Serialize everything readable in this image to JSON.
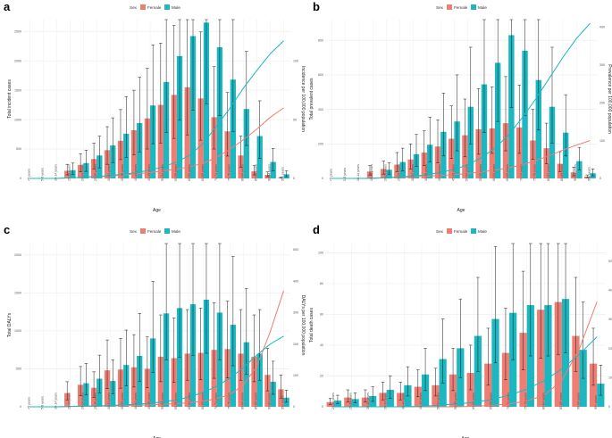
{
  "colors": {
    "female": "#EE7D73",
    "male": "#1BB8C1",
    "grid": "#EBEBEB",
    "errorbar": "#1a1a1a"
  },
  "legend": {
    "title": "Sex",
    "female": "Female",
    "male": "Male"
  },
  "chart_data": [
    {
      "panel": "a",
      "type": "bar",
      "title": "",
      "xlabel": "Age",
      "ylabel": "Total incident cases",
      "y2label": "Incidence per 100,000 population",
      "ylim": [
        0,
        2700
      ],
      "yticks": [
        0,
        500,
        1000,
        1500,
        2000,
        2500
      ],
      "y2lim": [
        0,
        135
      ],
      "y2ticks": [
        0,
        50,
        100
      ],
      "categories": [
        "<5 years",
        "5-9 years",
        "10-14 years",
        "15-19 years",
        "20-24 years",
        "25-29 years",
        "30-34 years",
        "35-39 years",
        "40-44 years",
        "45-49 years",
        "50-54 years",
        "55-59 years",
        "60-64 years",
        "65-69 years",
        "70-74 years",
        "75-79 years",
        "80-84 years",
        "85-89 years",
        "90-94 years",
        "95+ years"
      ],
      "series": [
        {
          "name": "Female",
          "values": [
            0,
            0,
            0,
            130,
            230,
            330,
            480,
            640,
            820,
            1020,
            1250,
            1420,
            1550,
            1360,
            1040,
            800,
            390,
            120,
            60,
            10
          ],
          "err_low": [
            0,
            0,
            0,
            60,
            110,
            160,
            240,
            320,
            400,
            500,
            600,
            680,
            740,
            650,
            500,
            380,
            190,
            60,
            30,
            5
          ],
          "err_high": [
            0,
            0,
            0,
            240,
            420,
            600,
            880,
            1170,
            1500,
            1870,
            2300,
            2600,
            2840,
            2490,
            1900,
            1460,
            720,
            220,
            110,
            20
          ],
          "rate": [
            0,
            0,
            0,
            0.5,
            1,
            1.5,
            2,
            3,
            4,
            5,
            6.5,
            8,
            10,
            13,
            18,
            25,
            33,
            42,
            52,
            60
          ]
        },
        {
          "name": "Male",
          "values": [
            0,
            0,
            0,
            140,
            260,
            390,
            560,
            760,
            940,
            1240,
            1640,
            2080,
            2420,
            2650,
            2230,
            1680,
            1180,
            720,
            280,
            70
          ],
          "err_low": [
            0,
            0,
            0,
            70,
            120,
            180,
            270,
            360,
            450,
            590,
            780,
            990,
            1160,
            1270,
            1070,
            800,
            560,
            340,
            130,
            30
          ],
          "err_high": [
            0,
            0,
            0,
            260,
            480,
            720,
            1030,
            1390,
            1720,
            2270,
            3000,
            3800,
            4430,
            4850,
            4080,
            3080,
            2160,
            1320,
            510,
            130
          ],
          "rate": [
            0,
            0,
            0,
            0.5,
            1,
            1.5,
            2.5,
            3.5,
            5,
            7,
            10,
            14,
            20,
            30,
            45,
            60,
            77,
            92,
            106,
            117
          ]
        }
      ]
    },
    {
      "panel": "b",
      "type": "bar",
      "title": "",
      "xlabel": "Age",
      "ylabel": "Total prevalent cases",
      "y2label": "Prevalence per 100,000 population",
      "ylim": [
        0,
        920
      ],
      "yticks": [
        0,
        200,
        400,
        600,
        800
      ],
      "y2lim": [
        0,
        420
      ],
      "y2ticks": [
        0,
        100,
        200,
        300,
        400
      ],
      "categories": [
        "<5 years",
        "5-9 years",
        "10-14 years",
        "15-19 years",
        "20-24 years",
        "25-29 years",
        "30-34 years",
        "35-39 years",
        "40-44 years",
        "45-49 years",
        "50-54 years",
        "55-59 years",
        "60-64 years",
        "65-69 years",
        "70-74 years",
        "75-79 years",
        "80-84 years",
        "85-89 years",
        "90-94 years",
        "95+ years"
      ],
      "series": [
        {
          "name": "Female",
          "values": [
            0,
            0,
            0,
            40,
            55,
            80,
            110,
            150,
            185,
            230,
            250,
            285,
            290,
            320,
            295,
            220,
            175,
            85,
            35,
            10
          ],
          "err_low": [
            0,
            0,
            0,
            20,
            25,
            40,
            55,
            75,
            90,
            115,
            125,
            140,
            145,
            160,
            145,
            110,
            85,
            40,
            15,
            5
          ],
          "err_high": [
            0,
            0,
            0,
            75,
            100,
            150,
            200,
            275,
            340,
            420,
            460,
            520,
            530,
            590,
            540,
            400,
            320,
            155,
            65,
            20
          ],
          "rate": [
            0,
            0,
            0,
            1,
            2,
            3,
            4,
            6,
            8,
            10,
            13,
            17,
            22,
            28,
            36,
            47,
            60,
            75,
            88,
            100
          ]
        },
        {
          "name": "Male",
          "values": [
            0,
            0,
            0,
            0,
            50,
            95,
            140,
            195,
            270,
            330,
            415,
            545,
            670,
            830,
            740,
            570,
            415,
            265,
            100,
            30
          ],
          "err_low": [
            0,
            0,
            0,
            0,
            25,
            45,
            70,
            95,
            130,
            160,
            200,
            265,
            330,
            410,
            365,
            280,
            205,
            130,
            50,
            15
          ],
          "err_high": [
            0,
            0,
            0,
            0,
            90,
            175,
            255,
            355,
            495,
            600,
            760,
            995,
            1225,
            1520,
            1350,
            1040,
            760,
            485,
            180,
            55
          ],
          "rate": [
            0,
            0,
            0,
            0,
            2,
            4,
            6,
            10,
            16,
            24,
            36,
            55,
            80,
            115,
            160,
            210,
            265,
            320,
            370,
            410
          ]
        }
      ]
    },
    {
      "panel": "c",
      "type": "bar",
      "title": "",
      "xlabel": "Age",
      "ylabel": "Total DALYs",
      "y2label": "DALYs per 100,000 population",
      "ylim": [
        0,
        2150
      ],
      "yticks": [
        0,
        500,
        1000,
        1500,
        2000
      ],
      "y2lim": [
        0,
        520
      ],
      "y2ticks": [
        0,
        100,
        200,
        300,
        400,
        500
      ],
      "categories": [
        "<5 years",
        "5-9 years",
        "10-14 years",
        "15-19 years",
        "20-24 years",
        "25-29 years",
        "30-34 years",
        "35-39 years",
        "40-44 years",
        "45-49 years",
        "50-54 years",
        "55-59 years",
        "60-64 years",
        "65-69 years",
        "70-74 years",
        "75-79 years",
        "80-84 years",
        "85-89 years",
        "90-94 years",
        "95+ years"
      ],
      "series": [
        {
          "name": "Female",
          "values": [
            0,
            0,
            0,
            180,
            290,
            250,
            480,
            490,
            520,
            500,
            660,
            640,
            700,
            710,
            750,
            760,
            700,
            660,
            420,
            230
          ],
          "err_low": [
            0,
            0,
            0,
            90,
            145,
            125,
            240,
            245,
            260,
            250,
            330,
            320,
            350,
            355,
            375,
            380,
            350,
            330,
            210,
            115
          ],
          "err_high": [
            0,
            0,
            0,
            330,
            530,
            460,
            880,
            900,
            950,
            920,
            1210,
            1170,
            1280,
            1300,
            1370,
            1390,
            1280,
            1210,
            770,
            420
          ],
          "rate": [
            0,
            0,
            0,
            1,
            1.5,
            2,
            3,
            4,
            5,
            6,
            8,
            10,
            13,
            18,
            26,
            40,
            70,
            130,
            240,
            370
          ]
        },
        {
          "name": "Male",
          "values": [
            0,
            0,
            0,
            0,
            310,
            370,
            340,
            550,
            670,
            900,
            1230,
            1300,
            1350,
            1410,
            1240,
            1080,
            850,
            700,
            330,
            120
          ],
          "err_low": [
            0,
            0,
            0,
            0,
            155,
            185,
            170,
            275,
            335,
            450,
            615,
            650,
            675,
            705,
            620,
            540,
            425,
            350,
            165,
            60
          ],
          "err_high": [
            0,
            0,
            0,
            0,
            570,
            680,
            620,
            1010,
            1230,
            1650,
            2250,
            2380,
            2470,
            2580,
            2270,
            1980,
            1560,
            1280,
            600,
            220
          ],
          "rate": [
            0,
            0,
            0,
            1,
            2,
            3,
            4,
            6,
            8,
            11,
            16,
            22,
            32,
            46,
            66,
            92,
            125,
            165,
            200,
            225
          ]
        }
      ]
    },
    {
      "panel": "d",
      "type": "bar",
      "title": "",
      "xlabel": "Age",
      "ylabel": "Total death cases",
      "y2label": "Deaths per 100,000 population",
      "ylim": [
        0,
        106
      ],
      "yticks": [
        0,
        20,
        40,
        60,
        80,
        100
      ],
      "y2lim": [
        0,
        56
      ],
      "y2ticks": [
        0,
        10,
        20,
        30,
        40,
        50
      ],
      "categories": [
        "20-24 years",
        "25-29 years",
        "30-34 years",
        "35-39 years",
        "40-44 years",
        "45-49 years",
        "50-54 years",
        "55-59 years",
        "60-64 years",
        "65-69 years",
        "70-74 years",
        "75-79 years",
        "80-84 years",
        "85-89 years",
        "90-94 years",
        "95+ years"
      ],
      "series": [
        {
          "name": "Female",
          "values": [
            3,
            6,
            6,
            9,
            9,
            13,
            14,
            21,
            22,
            28,
            35,
            48,
            63,
            68,
            46,
            28
          ],
          "err_low": [
            1.5,
            3,
            3,
            4.5,
            4.5,
            6.5,
            7,
            10.5,
            11,
            14,
            17.5,
            24,
            31.5,
            34,
            23,
            14
          ],
          "err_high": [
            5.5,
            11,
            11,
            16,
            16,
            24,
            25,
            38,
            40,
            51,
            64,
            88,
            115,
            124,
            84,
            51
          ],
          "rate": [
            0,
            0,
            0,
            0,
            0,
            0,
            0,
            0,
            0.2,
            0.5,
            1,
            2,
            4,
            9,
            20,
            36
          ]
        },
        {
          "name": "Male",
          "values": [
            4,
            5,
            7,
            11,
            14,
            21,
            31,
            38,
            46,
            57,
            61,
            66,
            66,
            70,
            37,
            15
          ],
          "err_low": [
            2,
            2.5,
            3.5,
            5.5,
            7,
            10.5,
            15.5,
            19,
            23,
            28.5,
            30.5,
            33,
            33,
            35,
            18.5,
            7.5
          ],
          "err_high": [
            7.5,
            9,
            13,
            20,
            26,
            38,
            57,
            70,
            84,
            104,
            112,
            121,
            121,
            128,
            68,
            27
          ],
          "rate": [
            0,
            0,
            0,
            0,
            0,
            0.2,
            0.5,
            1,
            1.5,
            2.5,
            4,
            6,
            9,
            13,
            18,
            24
          ]
        }
      ]
    }
  ]
}
